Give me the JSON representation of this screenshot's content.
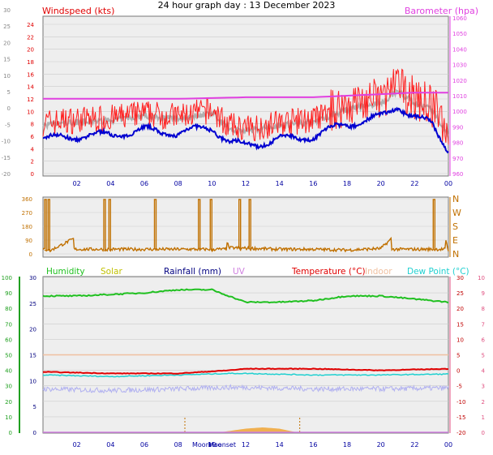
{
  "title": "24 hour graph day : 13 December 2023",
  "colors": {
    "wind": "#e00000",
    "gust": "#ff2020",
    "avg": "#0000d0",
    "dir": "#c07000",
    "baro": "#e040e0",
    "grey": "#b0b0b0",
    "humidity": "#20c020",
    "solar": "#c0c000",
    "rain": "#000080",
    "uv": "#d080e0",
    "temp": "#e00000",
    "indoor": "#f0c0a0",
    "dew": "#20d0d0",
    "ytick": "#20a020",
    "rtick": "#e05080",
    "tempTick": "#c00000"
  },
  "chart_data": [
    {
      "type": "line",
      "name": "wind_baro",
      "x_ticks": [
        "02",
        "04",
        "06",
        "08",
        "10",
        "12",
        "14",
        "16",
        "18",
        "20",
        "22",
        "00"
      ],
      "left_axis": {
        "label": "Windspeed (kts)",
        "range": [
          0,
          25
        ],
        "ticks": [
          "0",
          "2",
          "4",
          "6",
          "8",
          "10",
          "12",
          "14",
          "16",
          "18",
          "20",
          "22",
          "24"
        ]
      },
      "left2_axis": {
        "range": [
          -20,
          30
        ],
        "ticks": [
          "-20",
          "-15",
          "-10",
          "-5",
          "0",
          "5",
          "10",
          "15",
          "20",
          "25",
          "30"
        ]
      },
      "right_axis": {
        "label": "Barometer (hpa)",
        "range": [
          955,
          1055
        ],
        "ticks": [
          "960",
          "970",
          "980",
          "990",
          "1000",
          "1010",
          "1020",
          "1030",
          "1040",
          "1050",
          "1060"
        ]
      },
      "series": [
        {
          "name": "Windspeed (kts)",
          "x": [
            0,
            2,
            4,
            6,
            8,
            10,
            11,
            12,
            14,
            16,
            18,
            20,
            21,
            22,
            23,
            24
          ],
          "y": [
            7.5,
            8,
            8.2,
            9,
            8.5,
            9.5,
            7,
            6.5,
            7.5,
            8,
            10,
            11,
            13,
            11,
            10,
            6
          ]
        },
        {
          "name": "Barometer (hpa)",
          "x": [
            0,
            4,
            8,
            12,
            16,
            18,
            20,
            22,
            24
          ],
          "y": [
            1008,
            1008,
            1008,
            1009,
            1009,
            1010,
            1011,
            1012,
            1012
          ]
        }
      ]
    },
    {
      "type": "line",
      "name": "direction",
      "y_ticks": [
        "0",
        "90",
        "180",
        "270",
        "360"
      ],
      "right_ticks": [
        "N",
        "E",
        "S",
        "W",
        "N"
      ],
      "x": [
        0,
        0.2,
        0.4,
        6.5,
        7.5,
        9.5,
        10.2,
        11,
        14,
        16,
        18,
        20,
        23.2,
        24
      ],
      "y": [
        20,
        360,
        20,
        360,
        360,
        360,
        360,
        40,
        30,
        30,
        25,
        35,
        360,
        20
      ]
    },
    {
      "type": "line",
      "name": "temp_humidity",
      "legend": [
        "Humidity",
        "Solar",
        "Rainfall (mm)",
        "UV",
        "Temperature (°C)",
        "Indoor",
        "Dew Point (°C)"
      ],
      "moon_labels": [
        "Moonrise",
        "Moonset"
      ],
      "left_ticks": [
        "0",
        "10",
        "20",
        "30",
        "40",
        "50",
        "60",
        "70",
        "80",
        "90",
        "100"
      ],
      "rain_ticks": [
        "0",
        "5",
        "10",
        "15",
        "20",
        "25",
        "30"
      ],
      "right_ticks": [
        "-20",
        "-15",
        "-10",
        "-5",
        "0",
        "5",
        "10",
        "15",
        "20",
        "25",
        "30"
      ],
      "uv_ticks": [
        "0",
        "1",
        "2",
        "3",
        "4",
        "5",
        "6",
        "7",
        "8",
        "9",
        "10"
      ],
      "x_ticks": [
        "02",
        "04",
        "06",
        "08",
        "10",
        "12",
        "14",
        "16",
        "18",
        "20",
        "22",
        "00"
      ],
      "series": [
        {
          "name": "Humidity",
          "x": [
            0,
            2,
            4,
            6,
            8,
            10,
            11,
            12,
            14,
            16,
            18,
            20,
            22,
            24
          ],
          "y": [
            88,
            88,
            89,
            90,
            92,
            92,
            88,
            84,
            84,
            85,
            88,
            88,
            86,
            84
          ]
        },
        {
          "name": "Temperature (°C)",
          "x": [
            0,
            4,
            8,
            11,
            12,
            16,
            20,
            24
          ],
          "y": [
            -0.5,
            -1,
            -1,
            0,
            0.5,
            0.5,
            0,
            0.5
          ]
        },
        {
          "name": "Indoor",
          "x": [
            0,
            24
          ],
          "y": [
            5,
            5
          ]
        },
        {
          "name": "Dew Point (°C)",
          "x": [
            0,
            4,
            8,
            11,
            12,
            16,
            20,
            24
          ],
          "y": [
            -1.5,
            -2,
            -1.5,
            -1,
            -1,
            -1.5,
            -1.5,
            -1.2
          ]
        },
        {
          "name": "Solar",
          "x": [
            10.5,
            12,
            13,
            14,
            15
          ],
          "y": [
            0,
            1.5,
            2,
            1.5,
            0
          ]
        }
      ]
    }
  ]
}
